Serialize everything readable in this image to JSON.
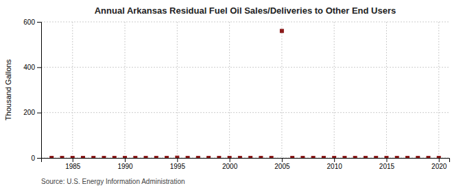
{
  "chart_data": {
    "type": "scatter",
    "title": "Annual Arkansas Residual Fuel Oil Sales/Deliveries to Other End Users",
    "y_label": "Thousand Gallons",
    "source": "Source: U.S. Energy Information Administration",
    "x": [
      1983,
      1984,
      1985,
      1986,
      1987,
      1988,
      1989,
      1990,
      1991,
      1992,
      1993,
      1994,
      1995,
      1996,
      1997,
      1998,
      1999,
      2000,
      2001,
      2002,
      2003,
      2004,
      2005,
      2006,
      2007,
      2008,
      2009,
      2010,
      2011,
      2012,
      2013,
      2014,
      2015,
      2016,
      2017,
      2018,
      2019,
      2020
    ],
    "values": [
      0,
      0,
      0,
      0,
      0,
      0,
      0,
      0,
      0,
      0,
      0,
      0,
      1,
      0,
      0,
      0,
      0,
      0,
      0,
      0,
      0,
      0,
      560,
      0,
      0,
      0,
      0,
      0,
      0,
      0,
      0,
      0,
      0,
      0,
      0,
      0,
      0,
      0
    ],
    "color": "#8b1a1a",
    "marker": "square",
    "xlim": [
      1982,
      2021
    ],
    "xticks": [
      1985,
      1990,
      1995,
      2000,
      2005,
      2010,
      2015,
      2020
    ],
    "ylim": [
      0,
      600
    ],
    "yticks": [
      0,
      200,
      400,
      600
    ],
    "grid": true
  }
}
